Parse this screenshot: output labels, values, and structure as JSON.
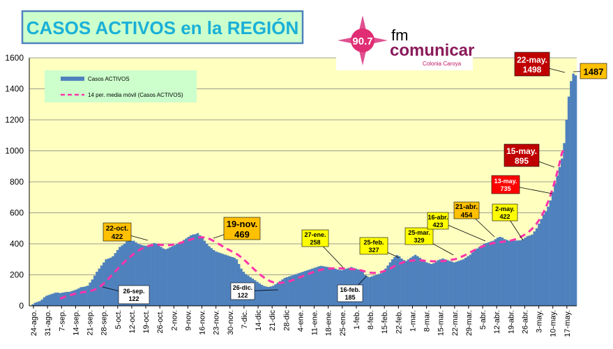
{
  "title": "CASOS ACTIVOS en la REGIÓN",
  "logo": {
    "frequency": "90.7",
    "fm": "fm",
    "brand": "comunicar",
    "location": "Colonia Caroya",
    "colors": {
      "star": "#e0508f",
      "frequency_circle": "#e02d74",
      "text": "#000000",
      "brand": "#8a1a5a",
      "location": "#c0165c"
    }
  },
  "colors": {
    "plot_bg": "#ffffc0",
    "bars": "#4f81bd",
    "moving_average": "#ff33aa",
    "legend_bg": "#ccffcc",
    "title_bg": "#ccffcc",
    "title_border": "#4f81bd",
    "title_text": "#1ab0d8",
    "box_orange": "#ffc000",
    "box_yellow": "#ffff00",
    "box_white": "#ffffff",
    "box_red": "#ff0000",
    "box_darkred": "#c00000"
  },
  "chart_data": {
    "type": "bar",
    "title": "CASOS ACTIVOS en la REGIÓN",
    "ylim": [
      0,
      1600
    ],
    "yticks": [
      0,
      200,
      400,
      600,
      800,
      1000,
      1200,
      1400,
      1600
    ],
    "grid": true,
    "legend_position": "top-left",
    "x_labels": [
      "24-ago.",
      "31-ago.",
      "7-sep.",
      "14-sep.",
      "21-sep.",
      "28-sep.",
      "5-oct.",
      "12-oct.",
      "19-oct.",
      "26-oct.",
      "2-nov.",
      "9-nov.",
      "16-nov.",
      "23-nov.",
      "30-nov.",
      "7-dic.",
      "14-dic",
      "21-dic",
      "28-dic",
      "4-ene.",
      "11-ene.",
      "18-ene.",
      "25-ene.",
      "1-feb.",
      "8-feb.",
      "15-feb.",
      "22-feb.",
      "1-mar.",
      "8-mar.",
      "15-mar.",
      "22-mar.",
      "29-mar.",
      "5-abr.",
      "12-abr.",
      "19-abr.",
      "26-abr.",
      "3-may.",
      "10-may.",
      "17-may."
    ],
    "series": [
      {
        "name": "Casos ACTIVOS",
        "kind": "bar",
        "values": [
          0,
          10,
          20,
          25,
          30,
          40,
          55,
          65,
          70,
          75,
          80,
          85,
          85,
          82,
          85,
          88,
          90,
          90,
          95,
          100,
          105,
          112,
          120,
          122,
          125,
          130,
          150,
          170,
          195,
          220,
          240,
          260,
          280,
          300,
          305,
          310,
          320,
          340,
          360,
          380,
          390,
          400,
          415,
          420,
          418,
          420,
          410,
          400,
          395,
          390,
          388,
          385,
          392,
          398,
          405,
          400,
          390,
          380,
          370,
          365,
          370,
          378,
          385,
          392,
          400,
          408,
          415,
          425,
          435,
          445,
          455,
          460,
          462,
          469,
          455,
          440,
          420,
          400,
          385,
          372,
          360,
          350,
          345,
          340,
          335,
          330,
          325,
          320,
          315,
          310,
          300,
          270,
          240,
          220,
          205,
          195,
          185,
          175,
          165,
          155,
          145,
          135,
          128,
          124,
          122,
          125,
          130,
          140,
          150,
          160,
          170,
          180,
          185,
          190,
          195,
          200,
          205,
          210,
          215,
          220,
          225,
          230,
          235,
          240,
          245,
          250,
          255,
          258,
          255,
          252,
          250,
          248,
          245,
          240,
          235,
          232,
          230,
          235,
          240,
          245,
          250,
          245,
          240,
          235,
          230,
          220,
          200,
          190,
          185,
          190,
          195,
          200,
          205,
          210,
          220,
          240,
          260,
          280,
          300,
          315,
          327,
          320,
          305,
          295,
          290,
          300,
          310,
          320,
          329,
          320,
          310,
          300,
          290,
          280,
          275,
          270,
          275,
          285,
          295,
          300,
          305,
          300,
          295,
          290,
          285,
          280,
          285,
          290,
          295,
          300,
          310,
          320,
          330,
          345,
          360,
          370,
          380,
          390,
          400,
          405,
          410,
          415,
          420,
          430,
          440,
          445,
          440,
          430,
          425,
          420,
          418,
          420,
          421,
          422,
          423,
          430,
          440,
          450,
          454,
          460,
          480,
          500,
          530,
          560,
          590,
          610,
          640,
          680,
          735,
          790,
          840,
          895,
          950,
          1050,
          1200,
          1350,
          1450,
          1498,
          1487
        ]
      },
      {
        "name": "14 per. media móvil (Casos ACTIVOS)",
        "kind": "line",
        "style": "dashed",
        "values": [
          null,
          null,
          null,
          null,
          null,
          null,
          null,
          null,
          null,
          null,
          null,
          null,
          null,
          45,
          52,
          58,
          63,
          68,
          72,
          76,
          79,
          82,
          85,
          88,
          90,
          92,
          95,
          99,
          104,
          111,
          120,
          131,
          144,
          158,
          173,
          189,
          205,
          221,
          237,
          252,
          267,
          282,
          296,
          310,
          322,
          334,
          345,
          355,
          364,
          372,
          378,
          384,
          388,
          391,
          393,
          394,
          394,
          393,
          392,
          391,
          391,
          392,
          394,
          397,
          400,
          404,
          408,
          413,
          418,
          423,
          428,
          432,
          436,
          440,
          442,
          442,
          441,
          438,
          433,
          426,
          418,
          410,
          401,
          392,
          383,
          374,
          366,
          358,
          350,
          343,
          335,
          325,
          313,
          300,
          287,
          273,
          259,
          245,
          231,
          218,
          205,
          193,
          182,
          172,
          164,
          157,
          152,
          149,
          148,
          148,
          149,
          151,
          154,
          158,
          163,
          168,
          174,
          180,
          186,
          192,
          198,
          204,
          210,
          215,
          220,
          225,
          229,
          233,
          236,
          238,
          240,
          241,
          242,
          242,
          242,
          242,
          241,
          240,
          239,
          238,
          237,
          236,
          235,
          233,
          230,
          226,
          222,
          218,
          215,
          213,
          212,
          213,
          215,
          218,
          222,
          227,
          233,
          240,
          248,
          256,
          264,
          271,
          277,
          282,
          286,
          289,
          291,
          292,
          293,
          293,
          293,
          292,
          291,
          290,
          289,
          288,
          287,
          287,
          287,
          288,
          289,
          290,
          292,
          294,
          297,
          300,
          304,
          309,
          315,
          322,
          329,
          337,
          345,
          353,
          361,
          368,
          375,
          381,
          387,
          392,
          397,
          401,
          404,
          407,
          409,
          411,
          413,
          415,
          417,
          419,
          422,
          426,
          431,
          437,
          444,
          452,
          461,
          471,
          483,
          497,
          513,
          531,
          552,
          576,
          604,
          636,
          672,
          712,
          757,
          807,
          862,
          922,
          985,
          1010
        ]
      }
    ],
    "annotations": [
      {
        "date": "26-sep.",
        "label": "26-sep.",
        "value": "122",
        "style": "white"
      },
      {
        "date": "22-oct.",
        "label": "22-oct.",
        "value": "422",
        "style": "orange"
      },
      {
        "date": "19-nov.",
        "label": "19-nov.",
        "value": "469",
        "style": "orange"
      },
      {
        "date": "26-dic.",
        "label": "26-dic.",
        "value": "122",
        "style": "white"
      },
      {
        "date": "27-ene.",
        "label": "27-ene.",
        "value": "258",
        "style": "yellow"
      },
      {
        "date": "16-feb.",
        "label": "16-feb.",
        "value": "185",
        "style": "white"
      },
      {
        "date": "25-feb.",
        "label": "25-feb.",
        "value": "327",
        "style": "yellow"
      },
      {
        "date": "25-mar.",
        "label": "25-mar.",
        "value": "329",
        "style": "yellow"
      },
      {
        "date": "16-abr.",
        "label": "16-abr.",
        "value": "423",
        "style": "yellow"
      },
      {
        "date": "21-abr.",
        "label": "21-abr.",
        "value": "454",
        "style": "orange"
      },
      {
        "date": "2-may.",
        "label": "2-may.",
        "value": "422",
        "style": "yellow"
      },
      {
        "date": "13-may.",
        "label": "13-may.",
        "value": "735",
        "style": "red"
      },
      {
        "date": "15-may.",
        "label": "15-may.",
        "value": "895",
        "style": "darkred"
      },
      {
        "date": "22-may.",
        "label": "22-may.",
        "value": "1498",
        "style": "darkred"
      },
      {
        "date": "",
        "label": "",
        "value": "1487",
        "style": "orange"
      }
    ]
  }
}
